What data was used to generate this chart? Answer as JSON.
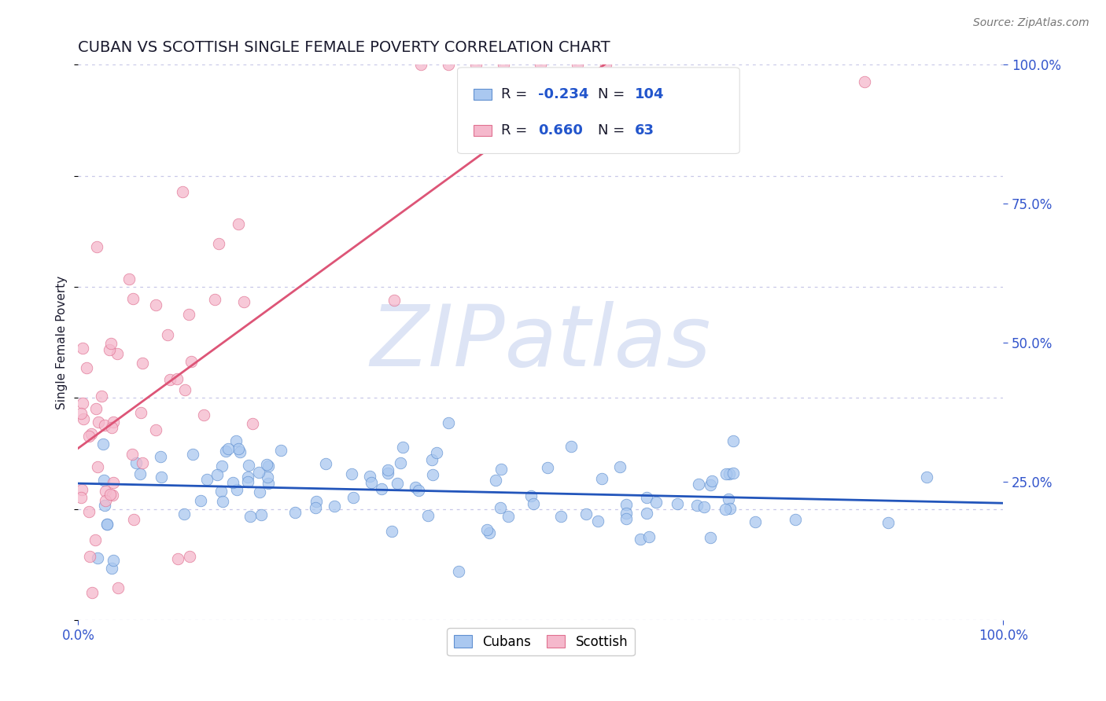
{
  "title": "CUBAN VS SCOTTISH SINGLE FEMALE POVERTY CORRELATION CHART",
  "source_text": "Source: ZipAtlas.com",
  "ylabel": "Single Female Poverty",
  "xlim": [
    0.0,
    1.0
  ],
  "ylim": [
    0.0,
    1.0
  ],
  "grid_color": "#c8c8e8",
  "background_color": "#ffffff",
  "watermark_text": "ZIPatlas",
  "watermark_color": "#dde4f5",
  "cubans_color": "#aac8f0",
  "scottish_color": "#f5b8cc",
  "cubans_edge_color": "#6090d0",
  "scottish_edge_color": "#e07090",
  "cubans_trend_color": "#2255bb",
  "scottish_trend_color": "#dd5577",
  "cubans_R": -0.234,
  "cubans_N": 104,
  "scottish_R": 0.66,
  "scottish_N": 63,
  "legend_text_color": "#1a1a2e",
  "legend_value_color": "#2255cc",
  "title_color": "#1a1a2e",
  "title_fontsize": 14,
  "axis_label_color": "#3355cc",
  "source_color": "#777777"
}
